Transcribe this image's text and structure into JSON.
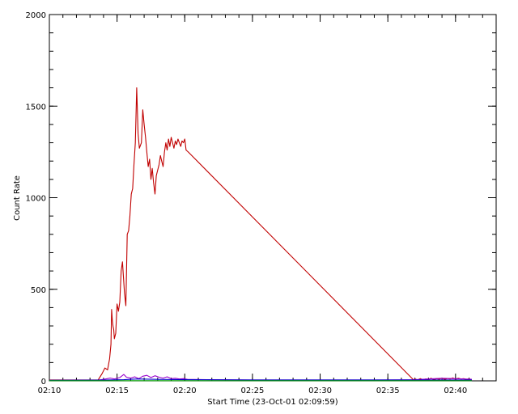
{
  "chart_data": {
    "type": "line",
    "xlabel": "Start Time (23-Oct-01 02:09:59)",
    "ylabel": "Count Rate",
    "x_unit": "minutes after 02:10",
    "xlim": [
      0,
      33
    ],
    "ylim": [
      0,
      2000
    ],
    "x_ticks": [
      0,
      5,
      10,
      15,
      20,
      25,
      30
    ],
    "x_tick_labels": [
      "02:10",
      "02:15",
      "02:20",
      "02:25",
      "02:30",
      "02:35",
      "02:40"
    ],
    "y_ticks": [
      0,
      500,
      1000,
      1500,
      2000
    ],
    "y_tick_labels": [
      "0",
      "500",
      "1000",
      "1500",
      "2000"
    ],
    "grid": false,
    "series": [
      {
        "color": "#c00000",
        "x": [
          0,
          3.6,
          3.9,
          4.1,
          4.3,
          4.45,
          4.55,
          4.6,
          4.65,
          4.7,
          4.75,
          4.8,
          4.9,
          5.0,
          5.1,
          5.2,
          5.3,
          5.4,
          5.55,
          5.65,
          5.75,
          5.85,
          5.95,
          6.05,
          6.15,
          6.25,
          6.35,
          6.45,
          6.55,
          6.65,
          6.8,
          6.9,
          7.0,
          7.1,
          7.2,
          7.3,
          7.4,
          7.5,
          7.6,
          7.7,
          7.8,
          7.9,
          8.0,
          8.1,
          8.2,
          8.3,
          8.4,
          8.5,
          8.6,
          8.7,
          8.8,
          8.9,
          9.0,
          9.1,
          9.2,
          9.3,
          9.4,
          9.5,
          9.6,
          9.7,
          9.8,
          9.9,
          10.0,
          10.1,
          10.25,
          26.9,
          27.0,
          27.2,
          27.4,
          27.6,
          27.8,
          28.0,
          28.2,
          28.4,
          28.6,
          28.8,
          29.0,
          29.2,
          29.4,
          29.6,
          29.8,
          30.0,
          30.2,
          30.4,
          30.6,
          30.8,
          31.0,
          31.2
        ],
        "y": [
          5,
          5,
          40,
          70,
          60,
          120,
          200,
          390,
          330,
          300,
          280,
          230,
          260,
          420,
          380,
          430,
          600,
          650,
          480,
          410,
          800,
          820,
          900,
          1020,
          1050,
          1180,
          1300,
          1600,
          1350,
          1270,
          1300,
          1480,
          1400,
          1330,
          1250,
          1170,
          1210,
          1100,
          1160,
          1080,
          1020,
          1120,
          1150,
          1180,
          1230,
          1200,
          1170,
          1250,
          1300,
          1260,
          1320,
          1280,
          1330,
          1300,
          1270,
          1310,
          1290,
          1320,
          1300,
          1280,
          1310,
          1300,
          1320,
          1260,
          1250,
          5,
          10,
          5,
          12,
          6,
          10,
          8,
          14,
          6,
          12,
          9,
          15,
          8,
          13,
          10,
          16,
          9,
          14,
          10,
          12,
          8,
          10,
          7
        ]
      },
      {
        "color": "#9900cc",
        "x": [
          0,
          3.5,
          4.0,
          4.5,
          4.8,
          5.2,
          5.5,
          5.7,
          6.0,
          6.3,
          6.6,
          6.9,
          7.2,
          7.5,
          7.8,
          8.1,
          8.4,
          8.7,
          9.0,
          9.3,
          9.6,
          9.9,
          10.2,
          12,
          15,
          18,
          21,
          24,
          27,
          29,
          30,
          31.2
        ],
        "y": [
          2,
          3,
          8,
          15,
          10,
          18,
          35,
          20,
          15,
          22,
          12,
          25,
          30,
          18,
          28,
          20,
          15,
          22,
          12,
          14,
          10,
          12,
          8,
          6,
          5,
          5,
          5,
          5,
          6,
          14,
          12,
          9
        ]
      },
      {
        "color": "#0000cc",
        "x": [
          0,
          4,
          5.5,
          6.5,
          8,
          10,
          15,
          20,
          25,
          31.2
        ],
        "y": [
          3,
          4,
          6,
          10,
          8,
          6,
          5,
          5,
          5,
          5
        ]
      },
      {
        "color": "#00a000",
        "x": [
          0,
          31.2
        ],
        "y": [
          1,
          1
        ]
      }
    ]
  }
}
